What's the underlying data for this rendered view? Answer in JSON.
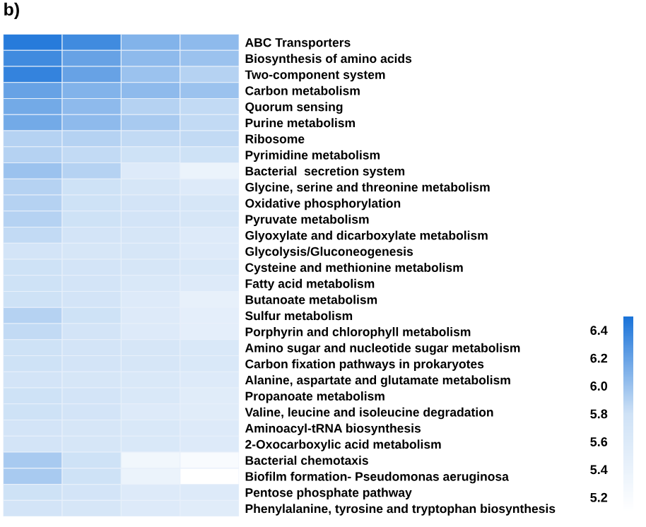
{
  "chart_data": {
    "type": "heatmap",
    "title": "b)",
    "categories": [
      null,
      null,
      null,
      null
    ],
    "y_categories": [
      "ABC Transporters",
      "Biosynthesis of amino acids",
      "Two-component system",
      "Carbon metabolism",
      "Quorum sensing",
      "Purine metabolism",
      "Ribosome",
      "Pyrimidine metabolism",
      "Bacterial  secretion system",
      "Glycine, serine and threonine metabolism",
      "Oxidative phosphorylation",
      "Pyruvate metabolism",
      "Glyoxylate and dicarboxylate metabolism",
      "Glycolysis/Gluconeogenesis",
      "Cysteine and methionine metabolism",
      "Fatty acid metabolism",
      "Butanoate metabolism",
      "Sulfur metabolism",
      "Porphyrin and chlorophyll metabolism",
      "Amino sugar and nucleotide sugar metabolism",
      "Carbon fixation pathways in prokaryotes",
      "Alanine, aspartate and glutamate metabolism",
      "Propanoate metabolism",
      "Valine, leucine and isoleucine degradation",
      "Aminoacyl-tRNA biosynthesis",
      "2-Oxocarboxylic acid metabolism",
      "Bacterial chemotaxis",
      "Biofilm formation- Pseudomonas aeruginosa",
      "Pentose phosphate pathway",
      "Phenylalanine, tyrosine and tryptophan biosynthesis"
    ],
    "cells": [
      [
        6.45,
        6.35,
        6.1,
        6.05
      ],
      [
        6.35,
        6.2,
        6.05,
        6.0
      ],
      [
        6.4,
        6.2,
        6.0,
        5.9
      ],
      [
        6.2,
        6.1,
        6.05,
        6.0
      ],
      [
        6.15,
        6.05,
        5.9,
        5.85
      ],
      [
        6.15,
        6.05,
        5.95,
        5.85
      ],
      [
        5.9,
        5.9,
        5.85,
        5.85
      ],
      [
        5.9,
        5.85,
        5.8,
        5.8
      ],
      [
        6.0,
        5.9,
        5.6,
        5.4
      ],
      [
        5.9,
        5.8,
        5.7,
        5.6
      ],
      [
        5.9,
        5.8,
        5.75,
        5.7
      ],
      [
        5.9,
        5.8,
        5.75,
        5.7
      ],
      [
        5.85,
        5.75,
        5.7,
        5.6
      ],
      [
        5.75,
        5.7,
        5.7,
        5.6
      ],
      [
        5.8,
        5.75,
        5.7,
        5.65
      ],
      [
        5.8,
        5.75,
        5.65,
        5.6
      ],
      [
        5.8,
        5.75,
        5.6,
        5.45
      ],
      [
        5.9,
        5.8,
        5.6,
        5.5
      ],
      [
        5.85,
        5.75,
        5.6,
        5.5
      ],
      [
        5.8,
        5.75,
        5.7,
        5.65
      ],
      [
        5.8,
        5.75,
        5.7,
        5.65
      ],
      [
        5.75,
        5.7,
        5.65,
        5.6
      ],
      [
        5.8,
        5.75,
        5.65,
        5.55
      ],
      [
        5.8,
        5.75,
        5.6,
        5.55
      ],
      [
        5.75,
        5.7,
        5.65,
        5.6
      ],
      [
        5.75,
        5.7,
        5.65,
        5.6
      ],
      [
        5.95,
        5.8,
        5.3,
        5.2
      ],
      [
        5.95,
        5.8,
        5.4,
        5.1
      ],
      [
        5.8,
        5.75,
        5.6,
        5.6
      ],
      [
        5.75,
        5.7,
        5.6,
        5.55
      ]
    ],
    "clim": [
      5.1,
      6.5
    ],
    "cticks": [
      5.2,
      5.4,
      5.6,
      5.8,
      {
        "value": 6.0,
        "label": "6.0"
      },
      6.2,
      6.4
    ]
  }
}
